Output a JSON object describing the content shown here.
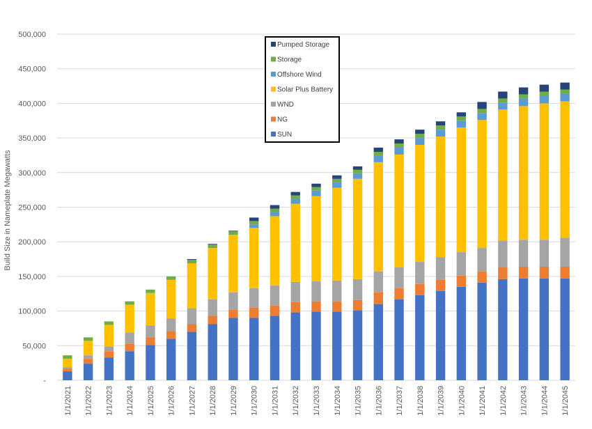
{
  "chart_data": {
    "type": "bar",
    "stacked": true,
    "ylabel": "Build Size in Nameplate Megawatts",
    "ylim": [
      0,
      500000
    ],
    "y_ticks": [
      "-",
      "50,000",
      "100,000",
      "150,000",
      "200,000",
      "250,000",
      "300,000",
      "350,000",
      "400,000",
      "450,000",
      "500,000"
    ],
    "grid": true,
    "legend_position": "top-center",
    "categories": [
      "1/1/2021",
      "1/1/2022",
      "1/1/2023",
      "1/1/2024",
      "1/1/2025",
      "1/1/2026",
      "1/1/2027",
      "1/1/2028",
      "1/1/2029",
      "1/1/2030",
      "1/1/2031",
      "1/1/2032",
      "1/1/2033",
      "1/1/2034",
      "1/1/2035",
      "1/1/2036",
      "1/1/2037",
      "1/1/2038",
      "1/1/2039",
      "1/1/2040",
      "1/1/2041",
      "1/1/2042",
      "1/1/2043",
      "1/1/2044",
      "1/1/2045"
    ],
    "series": [
      {
        "name": "SUN",
        "color": "#4472C4",
        "values": [
          13000,
          24000,
          33000,
          42000,
          51000,
          60000,
          70000,
          81000,
          90000,
          90000,
          93000,
          98000,
          99000,
          99000,
          101000,
          110000,
          117000,
          123000,
          129000,
          135000,
          141000,
          146000,
          147000,
          147000,
          147000
        ]
      },
      {
        "name": "NG",
        "color": "#ED7D31",
        "values": [
          4000,
          7000,
          9000,
          11000,
          11000,
          11000,
          11000,
          12000,
          12000,
          15000,
          15000,
          15000,
          15000,
          15000,
          15000,
          17000,
          16000,
          16000,
          16000,
          16000,
          16000,
          17000,
          17000,
          17000,
          17000
        ]
      },
      {
        "name": "WND",
        "color": "#A5A5A5",
        "values": [
          2000,
          5000,
          7000,
          16000,
          17000,
          18000,
          23000,
          24000,
          25000,
          28000,
          29000,
          29000,
          29000,
          30000,
          30000,
          30000,
          30000,
          32000,
          33000,
          34000,
          34000,
          39000,
          39000,
          39000,
          42000
        ]
      },
      {
        "name": "Solar Plus Battery",
        "color": "#FFC000",
        "values": [
          12000,
          21000,
          31000,
          40000,
          47000,
          56000,
          65000,
          74000,
          83000,
          87000,
          100000,
          113000,
          123000,
          134000,
          145000,
          158000,
          163000,
          169000,
          174000,
          180000,
          185000,
          189000,
          193000,
          197000,
          197000
        ]
      },
      {
        "name": "Offshore Wind",
        "color": "#5B9BD5",
        "values": [
          0,
          0,
          0,
          0,
          0,
          0,
          0,
          0,
          0,
          5000,
          6000,
          7000,
          8000,
          8000,
          8000,
          9000,
          10000,
          10000,
          10000,
          10000,
          10000,
          10000,
          11000,
          11000,
          11000
        ]
      },
      {
        "name": "Storage",
        "color": "#70AD47",
        "values": [
          5000,
          5000,
          5000,
          5000,
          5000,
          5000,
          5000,
          5000,
          5000,
          5000,
          5000,
          5000,
          5000,
          5000,
          5000,
          6000,
          6000,
          6000,
          6000,
          6000,
          6000,
          6000,
          6000,
          6000,
          6000
        ]
      },
      {
        "name": "Pumped Storage",
        "color": "#264478",
        "values": [
          0,
          0,
          0,
          0,
          0,
          0,
          1000,
          1000,
          1000,
          5000,
          5000,
          5000,
          5000,
          5000,
          5000,
          6000,
          6000,
          6000,
          6000,
          6000,
          10000,
          10000,
          10000,
          10000,
          10000
        ]
      }
    ]
  }
}
